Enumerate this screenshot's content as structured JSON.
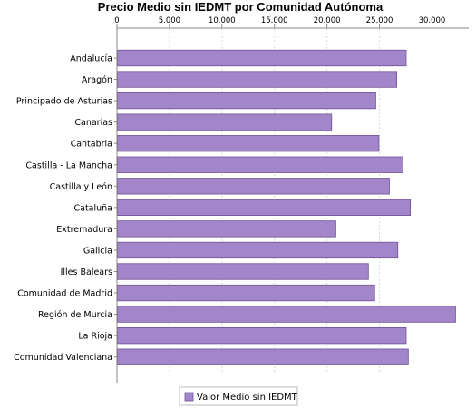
{
  "chart_data": {
    "type": "bar",
    "orientation": "horizontal",
    "title": "Precio Medio sin IEDMT por Comunidad Autónoma",
    "categories": [
      "Andalucía",
      "Aragón",
      "Principado de Asturias",
      "Canarias",
      "Cantabria",
      "Castilla - La Mancha",
      "Castilla y León",
      "Cataluña",
      "Extremadura",
      "Galicia",
      "Illes Balears",
      "Comunidad de Madrid",
      "Región de Murcia",
      "La Rioja",
      "Comunidad Valenciana"
    ],
    "series": [
      {
        "name": "Valor Medio sin IEDMT",
        "values": [
          27500,
          26600,
          24600,
          20400,
          24900,
          27200,
          25900,
          27900,
          20800,
          26700,
          23900,
          24500,
          32200,
          27500,
          27700
        ]
      }
    ],
    "xlim": [
      0,
      33500
    ],
    "x_ticks": [
      "0",
      "5.000",
      "10.000",
      "15.000",
      "20.000",
      "25.000",
      "30.000"
    ],
    "x_tick_values": [
      0,
      5000,
      10000,
      15000,
      20000,
      25000,
      30000
    ],
    "xaxis_position": "top",
    "grid": true,
    "legend": "bottom",
    "colors": {
      "bar_fill": "#a386c9",
      "bar_stroke": "#6e5394",
      "grid": "#d8d8d8",
      "axis": "#888888"
    }
  }
}
